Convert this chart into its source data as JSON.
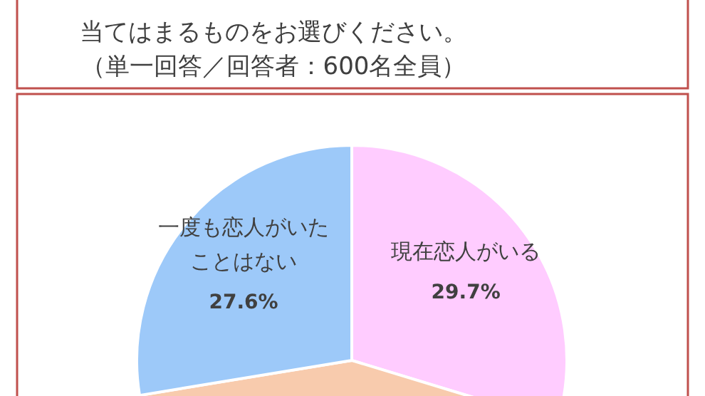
{
  "chart_data": {
    "type": "pie",
    "title": "当てはまるものをお選びください。",
    "subtitle": "（単一回答／回答者：600名全員）",
    "categories": [
      "現在恋人がいる",
      null,
      "一度も恋人がいたことはない"
    ],
    "values": [
      29.7,
      42.7,
      27.6
    ],
    "colors": [
      "#ffccff",
      "#f8cbad",
      "#9dc9f9"
    ],
    "value_labels": [
      "29.7%",
      null,
      "27.6%"
    ]
  }
}
